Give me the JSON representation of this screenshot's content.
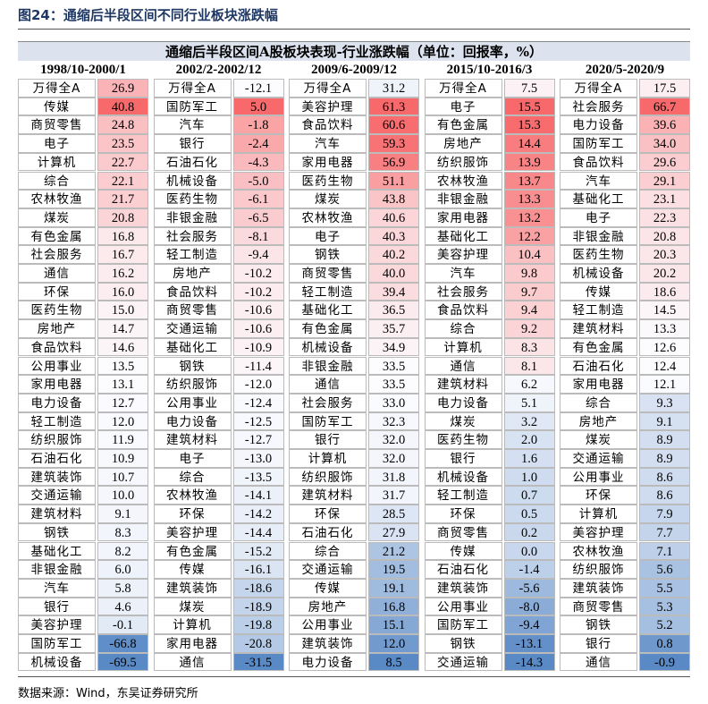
{
  "header": {
    "title": "图24：通缩后半段区间不同行业板块涨跌幅"
  },
  "table": {
    "title": "通缩后半段区间A股板块表现-行业涨跌幅（单位：回报率，%）",
    "columns": [
      {
        "period": "1998/10-2000/1",
        "rows": [
          [
            "万得全A",
            "26.9"
          ],
          [
            "传媒",
            "40.8"
          ],
          [
            "商贸零售",
            "24.8"
          ],
          [
            "电子",
            "23.5"
          ],
          [
            "计算机",
            "22.7"
          ],
          [
            "综合",
            "22.1"
          ],
          [
            "农林牧渔",
            "21.7"
          ],
          [
            "煤炭",
            "20.8"
          ],
          [
            "有色金属",
            "16.8"
          ],
          [
            "社会服务",
            "16.7"
          ],
          [
            "通信",
            "16.2"
          ],
          [
            "环保",
            "16.0"
          ],
          [
            "医药生物",
            "15.0"
          ],
          [
            "房地产",
            "14.7"
          ],
          [
            "食品饮料",
            "14.6"
          ],
          [
            "公用事业",
            "13.5"
          ],
          [
            "家用电器",
            "13.1"
          ],
          [
            "电力设备",
            "12.7"
          ],
          [
            "轻工制造",
            "12.0"
          ],
          [
            "纺织服饰",
            "11.9"
          ],
          [
            "石油石化",
            "10.9"
          ],
          [
            "建筑装饰",
            "10.7"
          ],
          [
            "交通运输",
            "10.0"
          ],
          [
            "建筑材料",
            "9.1"
          ],
          [
            "钢铁",
            "8.3"
          ],
          [
            "基础化工",
            "8.2"
          ],
          [
            "非银金融",
            "6.0"
          ],
          [
            "汽车",
            "5.8"
          ],
          [
            "银行",
            "4.6"
          ],
          [
            "美容护理",
            "-0.1"
          ],
          [
            "国防军工",
            "-66.8"
          ],
          [
            "机械设备",
            "-69.5"
          ]
        ]
      },
      {
        "period": "2002/2-2002/12",
        "rows": [
          [
            "万得全A",
            "-12.1"
          ],
          [
            "国防军工",
            "5.0"
          ],
          [
            "汽车",
            "-1.8"
          ],
          [
            "银行",
            "-2.4"
          ],
          [
            "石油石化",
            "-4.3"
          ],
          [
            "机械设备",
            "-5.0"
          ],
          [
            "医药生物",
            "-6.1"
          ],
          [
            "非银金融",
            "-6.5"
          ],
          [
            "社会服务",
            "-8.1"
          ],
          [
            "轻工制造",
            "-9.4"
          ],
          [
            "房地产",
            "-10.2"
          ],
          [
            "食品饮料",
            "-10.2"
          ],
          [
            "商贸零售",
            "-10.6"
          ],
          [
            "交通运输",
            "-10.6"
          ],
          [
            "基础化工",
            "-10.9"
          ],
          [
            "钢铁",
            "-11.4"
          ],
          [
            "纺织服饰",
            "-12.0"
          ],
          [
            "公用事业",
            "-12.4"
          ],
          [
            "电力设备",
            "-12.5"
          ],
          [
            "建筑材料",
            "-12.7"
          ],
          [
            "电子",
            "-13.0"
          ],
          [
            "综合",
            "-13.5"
          ],
          [
            "农林牧渔",
            "-14.1"
          ],
          [
            "环保",
            "-14.2"
          ],
          [
            "美容护理",
            "-14.4"
          ],
          [
            "有色金属",
            "-15.2"
          ],
          [
            "传媒",
            "-16.1"
          ],
          [
            "建筑装饰",
            "-18.6"
          ],
          [
            "煤炭",
            "-18.9"
          ],
          [
            "计算机",
            "-19.8"
          ],
          [
            "家用电器",
            "-20.8"
          ],
          [
            "通信",
            "-31.5"
          ]
        ]
      },
      {
        "period": "2009/6-2009/12",
        "rows": [
          [
            "万得全A",
            "31.2"
          ],
          [
            "美容护理",
            "61.3"
          ],
          [
            "食品饮料",
            "60.6"
          ],
          [
            "汽车",
            "59.3"
          ],
          [
            "家用电器",
            "56.9"
          ],
          [
            "医药生物",
            "51.1"
          ],
          [
            "煤炭",
            "43.8"
          ],
          [
            "农林牧渔",
            "40.6"
          ],
          [
            "电子",
            "40.3"
          ],
          [
            "钢铁",
            "40.2"
          ],
          [
            "商贸零售",
            "40.0"
          ],
          [
            "轻工制造",
            "39.4"
          ],
          [
            "基础化工",
            "36.5"
          ],
          [
            "有色金属",
            "35.7"
          ],
          [
            "机械设备",
            "34.9"
          ],
          [
            "非银金融",
            "33.5"
          ],
          [
            "通信",
            "33.5"
          ],
          [
            "社会服务",
            "33.0"
          ],
          [
            "国防军工",
            "32.3"
          ],
          [
            "银行",
            "32.0"
          ],
          [
            "计算机",
            "32.0"
          ],
          [
            "纺织服饰",
            "31.8"
          ],
          [
            "建筑材料",
            "31.7"
          ],
          [
            "环保",
            "28.5"
          ],
          [
            "石油石化",
            "27.9"
          ],
          [
            "综合",
            "21.2"
          ],
          [
            "交通运输",
            "19.5"
          ],
          [
            "传媒",
            "19.1"
          ],
          [
            "房地产",
            "16.8"
          ],
          [
            "公用事业",
            "15.1"
          ],
          [
            "建筑装饰",
            "12.0"
          ],
          [
            "电力设备",
            "8.5"
          ]
        ]
      },
      {
        "period": "2015/10-2016/3",
        "rows": [
          [
            "万得全A",
            "7.5"
          ],
          [
            "电子",
            "15.5"
          ],
          [
            "有色金属",
            "15.3"
          ],
          [
            "房地产",
            "14.4"
          ],
          [
            "纺织服饰",
            "13.9"
          ],
          [
            "农林牧渔",
            "13.7"
          ],
          [
            "非银金融",
            "13.3"
          ],
          [
            "家用电器",
            "13.2"
          ],
          [
            "基础化工",
            "12.2"
          ],
          [
            "美容护理",
            "10.4"
          ],
          [
            "汽车",
            "9.8"
          ],
          [
            "社会服务",
            "9.7"
          ],
          [
            "食品饮料",
            "9.4"
          ],
          [
            "综合",
            "9.2"
          ],
          [
            "计算机",
            "8.3"
          ],
          [
            "通信",
            "8.1"
          ],
          [
            "建筑材料",
            "6.2"
          ],
          [
            "电力设备",
            "5.1"
          ],
          [
            "煤炭",
            "3.2"
          ],
          [
            "医药生物",
            "2.0"
          ],
          [
            "银行",
            "1.6"
          ],
          [
            "机械设备",
            "1.0"
          ],
          [
            "轻工制造",
            "0.7"
          ],
          [
            "环保",
            "0.5"
          ],
          [
            "商贸零售",
            "0.2"
          ],
          [
            "传媒",
            "0.0"
          ],
          [
            "石油石化",
            "-1.4"
          ],
          [
            "建筑装饰",
            "-5.6"
          ],
          [
            "公用事业",
            "-8.0"
          ],
          [
            "国防军工",
            "-9.4"
          ],
          [
            "钢铁",
            "-13.1"
          ],
          [
            "交通运输",
            "-14.3"
          ]
        ]
      },
      {
        "period": "2020/5-2020/9",
        "rows": [
          [
            "万得全A",
            "17.5"
          ],
          [
            "社会服务",
            "66.7"
          ],
          [
            "电力设备",
            "39.6"
          ],
          [
            "国防军工",
            "34.0"
          ],
          [
            "食品饮料",
            "29.6"
          ],
          [
            "汽车",
            "29.1"
          ],
          [
            "基础化工",
            "23.1"
          ],
          [
            "电子",
            "22.3"
          ],
          [
            "非银金融",
            "20.8"
          ],
          [
            "医药生物",
            "20.3"
          ],
          [
            "机械设备",
            "20.2"
          ],
          [
            "传媒",
            "18.6"
          ],
          [
            "轻工制造",
            "14.5"
          ],
          [
            "建筑材料",
            "13.3"
          ],
          [
            "有色金属",
            "12.6"
          ],
          [
            "石油石化",
            "12.4"
          ],
          [
            "家用电器",
            "12.1"
          ],
          [
            "综合",
            "9.3"
          ],
          [
            "房地产",
            "9.1"
          ],
          [
            "煤炭",
            "8.9"
          ],
          [
            "交通运输",
            "8.9"
          ],
          [
            "公用事业",
            "8.6"
          ],
          [
            "环保",
            "8.6"
          ],
          [
            "计算机",
            "7.9"
          ],
          [
            "美容护理",
            "7.7"
          ],
          [
            "农林牧渔",
            "7.1"
          ],
          [
            "纺织服饰",
            "5.6"
          ],
          [
            "建筑装饰",
            "5.5"
          ],
          [
            "商贸零售",
            "5.3"
          ],
          [
            "钢铁",
            "5.2"
          ],
          [
            "银行",
            "0.8"
          ],
          [
            "通信",
            "-0.9"
          ]
        ]
      }
    ]
  },
  "footer": {
    "source": "数据来源：Wind，东吴证券研究所"
  }
}
